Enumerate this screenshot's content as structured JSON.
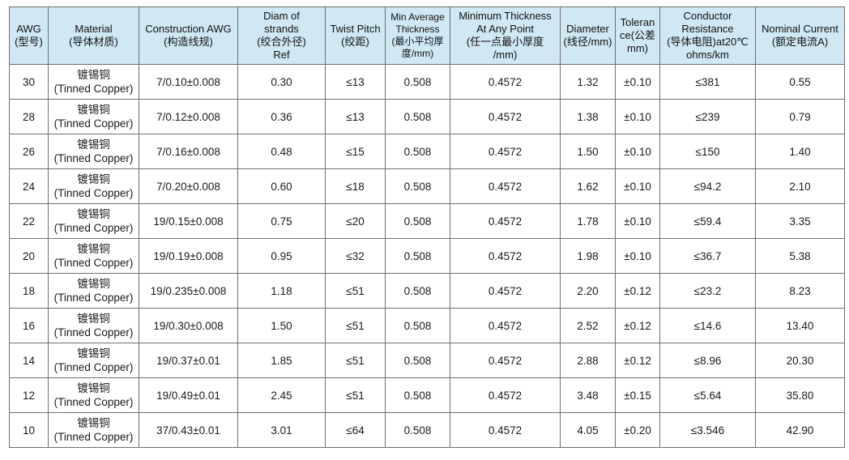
{
  "headers": [
    {
      "l1": "AWG",
      "l2": "(型号)",
      "l3": ""
    },
    {
      "l1": "Material",
      "l2": "(导体材质)",
      "l3": ""
    },
    {
      "l1": "Construction AWG",
      "l2": "(构造线规)",
      "l3": ""
    },
    {
      "l1": "Diam of",
      "l2": "strands",
      "l3": "(绞合外径)",
      "l4": "Ref"
    },
    {
      "l1": "Twist Pitch",
      "l2": "(绞距)",
      "l3": ""
    },
    {
      "l1": "Min Average",
      "l2": "Thickness",
      "l3": "(最小平均厚",
      "l4": "度/mm)"
    },
    {
      "l1": "Minimum Thickness",
      "l2": "At Any Point",
      "l3": "(任一点最小厚度",
      "l4": "/mm)"
    },
    {
      "l1": "Diameter",
      "l2": "(线径/mm)",
      "l3": ""
    },
    {
      "l1": "Toleran",
      "l2": "ce(公差",
      "l3": "mm)"
    },
    {
      "l1": "Conductor",
      "l2": "Resistance",
      "l3": "(导体电阻)at20℃",
      "l4": "ohms/km"
    },
    {
      "l1": "Nominal Current",
      "l2": "(额定电流A)",
      "l3": ""
    }
  ],
  "rows": [
    {
      "awg": "30",
      "mat_cn": "镀锡铜",
      "mat_en": "(Tinned Copper)",
      "construction": "7/0.10±0.008",
      "diam": "0.30",
      "pitch": "≤13",
      "min_avg": "0.508",
      "min_point": "0.4572",
      "diameter": "1.32",
      "tol": "±0.10",
      "resistance": "≤381",
      "current": "0.55"
    },
    {
      "awg": "28",
      "mat_cn": "镀锡铜",
      "mat_en": "(Tinned Copper)",
      "construction": "7/0.12±0.008",
      "diam": "0.36",
      "pitch": "≤13",
      "min_avg": "0.508",
      "min_point": "0.4572",
      "diameter": "1.38",
      "tol": "±0.10",
      "resistance": "≤239",
      "current": "0.79"
    },
    {
      "awg": "26",
      "mat_cn": "镀锡铜",
      "mat_en": "(Tinned Copper)",
      "construction": "7/0.16±0.008",
      "diam": "0.48",
      "pitch": "≤15",
      "min_avg": "0.508",
      "min_point": "0.4572",
      "diameter": "1.50",
      "tol": "±0.10",
      "resistance": "≤150",
      "current": "1.40"
    },
    {
      "awg": "24",
      "mat_cn": "镀锡铜",
      "mat_en": "(Tinned Copper)",
      "construction": "7/0.20±0.008",
      "diam": "0.60",
      "pitch": "≤18",
      "min_avg": "0.508",
      "min_point": "0.4572",
      "diameter": "1.62",
      "tol": "±0.10",
      "resistance": "≤94.2",
      "current": "2.10"
    },
    {
      "awg": "22",
      "mat_cn": "镀锡铜",
      "mat_en": "(Tinned Copper)",
      "construction": "19/0.15±0.008",
      "diam": "0.75",
      "pitch": "≤20",
      "min_avg": "0.508",
      "min_point": "0.4572",
      "diameter": "1.78",
      "tol": "±0.10",
      "resistance": "≤59.4",
      "current": "3.35"
    },
    {
      "awg": "20",
      "mat_cn": "镀锡铜",
      "mat_en": "(Tinned Copper)",
      "construction": "19/0.19±0.008",
      "diam": "0.95",
      "pitch": "≤32",
      "min_avg": "0.508",
      "min_point": "0.4572",
      "diameter": "1.98",
      "tol": "±0.10",
      "resistance": "≤36.7",
      "current": "5.38"
    },
    {
      "awg": "18",
      "mat_cn": "镀锡铜",
      "mat_en": "(Tinned Copper)",
      "construction": "19/0.235±0.008",
      "diam": "1.18",
      "pitch": "≤51",
      "min_avg": "0.508",
      "min_point": "0.4572",
      "diameter": "2.20",
      "tol": "±0.12",
      "resistance": "≤23.2",
      "current": "8.23"
    },
    {
      "awg": "16",
      "mat_cn": "镀锡铜",
      "mat_en": "(Tinned Copper)",
      "construction": "19/0.30±0.008",
      "diam": "1.50",
      "pitch": "≤51",
      "min_avg": "0.508",
      "min_point": "0.4572",
      "diameter": "2.52",
      "tol": "±0.12",
      "resistance": "≤14.6",
      "current": "13.40"
    },
    {
      "awg": "14",
      "mat_cn": "镀锡铜",
      "mat_en": "(Tinned Copper)",
      "construction": "19/0.37±0.01",
      "diam": "1.85",
      "pitch": "≤51",
      "min_avg": "0.508",
      "min_point": "0.4572",
      "diameter": "2.88",
      "tol": "±0.12",
      "resistance": "≤8.96",
      "current": "20.30"
    },
    {
      "awg": "12",
      "mat_cn": "镀锡铜",
      "mat_en": "(Tinned Copper)",
      "construction": "19/0.49±0.01",
      "diam": "2.45",
      "pitch": "≤51",
      "min_avg": "0.508",
      "min_point": "0.4572",
      "diameter": "3.48",
      "tol": "±0.15",
      "resistance": "≤5.64",
      "current": "35.80"
    },
    {
      "awg": "10",
      "mat_cn": "镀锡铜",
      "mat_en": "(Tinned Copper)",
      "construction": "37/0.43±0.01",
      "diam": "3.01",
      "pitch": "≤64",
      "min_avg": "0.508",
      "min_point": "0.4572",
      "diameter": "4.05",
      "tol": "±0.20",
      "resistance": "≤3.546",
      "current": "42.90"
    }
  ],
  "colors": {
    "header_bg": "#cfe8f3",
    "border": "#6f6f6f",
    "text": "#1a1a1a"
  }
}
